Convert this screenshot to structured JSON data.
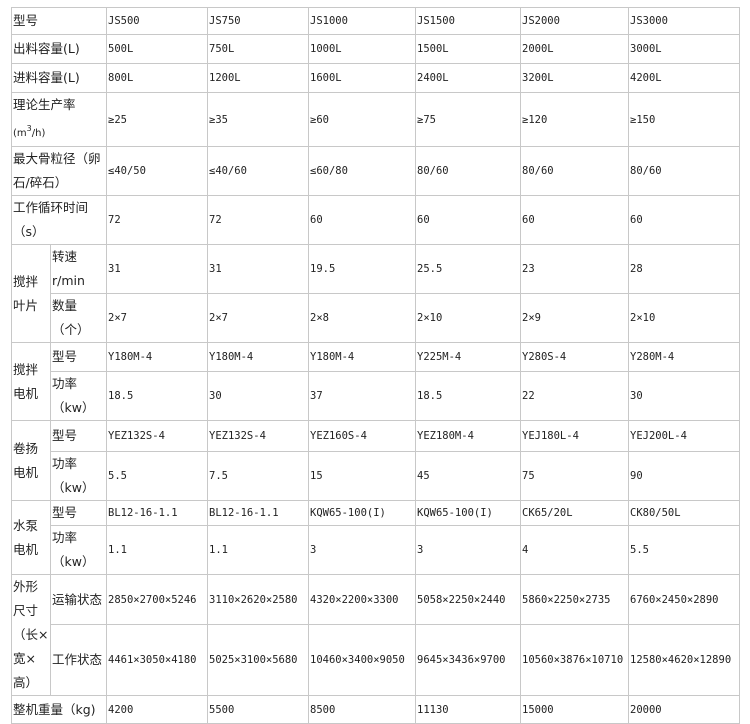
{
  "headers": {
    "model": "型号",
    "out_cap": "出料容量(L)",
    "in_cap": "进料容量(L)",
    "prod_rate": "理论生产率",
    "prod_rate_unit_a": "(m",
    "prod_rate_unit_sup": "3",
    "prod_rate_unit_b": "/h)",
    "max_agg": "最大骨粒径（卵石/碎石）",
    "cycle": "工作循环时间（s）",
    "blade": "搅拌叶片",
    "speed": "转速r/min",
    "qty": "数量（个）",
    "mix_motor": "搅拌电机",
    "hoist_motor": "卷扬电机",
    "pump_motor": "水泵电机",
    "sub_model": "型号",
    "sub_power": "功率（kw）",
    "dims": "外形尺寸",
    "dims_cont": "（长×宽×高）",
    "transport": "运输状态",
    "working": "工作状态",
    "weight": "整机重量（kg)"
  },
  "columns": [
    {
      "model": "JS500",
      "out": "500L",
      "in": "800L",
      "rate": "≥25",
      "agg": "≤40/50",
      "cycle": "72",
      "speed": "31",
      "qty": "2×7",
      "mix_model": "Y180M-4",
      "mix_power": "18.5",
      "hoist_model": "YEZ132S-4",
      "hoist_power": "5.5",
      "pump_model": "BL12-16-1.1",
      "pump_power": "1.1",
      "transport": "2850×2700×5246",
      "working": "4461×3050×4180",
      "weight": "4200"
    },
    {
      "model": "JS750",
      "out": "750L",
      "in": "1200L",
      "rate": "≥35",
      "agg": "≤40/60",
      "cycle": "72",
      "speed": "31",
      "qty": "2×7",
      "mix_model": "Y180M-4",
      "mix_power": "30",
      "hoist_model": "YEZ132S-4",
      "hoist_power": "7.5",
      "pump_model": "BL12-16-1.1",
      "pump_power": "1.1",
      "transport": "3110×2620×2580",
      "working": "5025×3100×5680",
      "weight": "5500"
    },
    {
      "model": "JS1000",
      "out": "1000L",
      "in": "1600L",
      "rate": "≥60",
      "agg": "≤60/80",
      "cycle": "60",
      "speed": "19.5",
      "qty": "2×8",
      "mix_model": "Y180M-4",
      "mix_power": "37",
      "hoist_model": "YEZ160S-4",
      "hoist_power": "15",
      "pump_model": "KQW65-100(I)",
      "pump_power": "3",
      "transport": "4320×2200×3300",
      "working": "10460×3400×9050",
      "weight": "8500"
    },
    {
      "model": "JS1500",
      "out": "1500L",
      "in": "2400L",
      "rate": "≥75",
      "agg": "80/60",
      "cycle": "60",
      "speed": "25.5",
      "qty": "2×10",
      "mix_model": "Y225M-4",
      "mix_power": "18.5",
      "hoist_model": "YEZ180M-4",
      "hoist_power": "45",
      "pump_model": "KQW65-100(I)",
      "pump_power": "3",
      "transport": "5058×2250×2440",
      "working": "9645×3436×9700",
      "weight": "11130"
    },
    {
      "model": "JS2000",
      "out": "2000L",
      "in": "3200L",
      "rate": "≥120",
      "agg": "80/60",
      "cycle": "60",
      "speed": "23",
      "qty": "2×9",
      "mix_model": "Y280S-4",
      "mix_power": "22",
      "hoist_model": "YEJ180L-4",
      "hoist_power": "75",
      "pump_model": "CK65/20L",
      "pump_power": "4",
      "transport": "5860×2250×2735",
      "working": "10560×3876×10710",
      "weight": "15000"
    },
    {
      "model": "JS3000",
      "out": "3000L",
      "in": "4200L",
      "rate": "≥150",
      "agg": "80/60",
      "cycle": "60",
      "speed": "28",
      "qty": "2×10",
      "mix_model": "Y280M-4",
      "mix_power": "30",
      "hoist_model": "YEJ200L-4",
      "hoist_power": "90",
      "pump_model": "CK80/50L",
      "pump_power": "5.5",
      "transport": "6760×2450×2890",
      "working": "12580×4620×12890",
      "weight": "20000"
    }
  ]
}
